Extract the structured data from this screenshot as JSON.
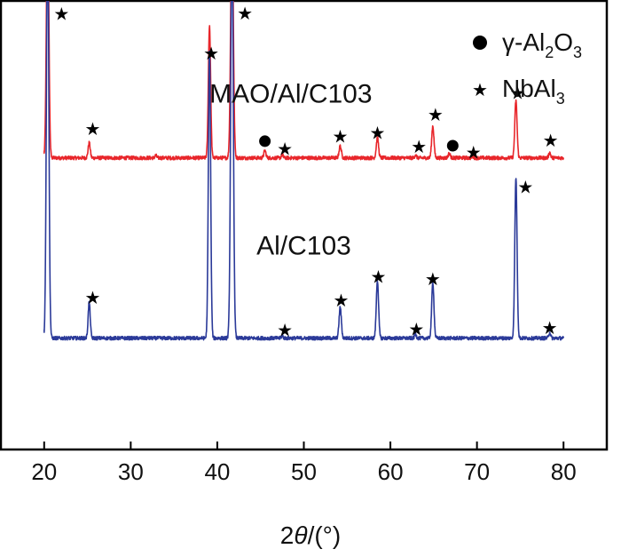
{
  "chart_data": {
    "type": "line",
    "title": "",
    "xlabel_parts": [
      "2",
      "θ",
      "/(°)"
    ],
    "ylabel": "",
    "xlim": [
      15,
      85
    ],
    "ylim": [
      -10,
      100
    ],
    "xticks": [
      20,
      30,
      40,
      50,
      60,
      70,
      80
    ],
    "y_ticks_shown": false,
    "colors": {
      "red": "#e8262b",
      "blue": "#2b3a99",
      "axis": "#000000"
    },
    "series": [
      {
        "name": "MAO/Al/C103",
        "color": "#e8262b",
        "baseline": 61.5,
        "x_range": [
          20,
          80
        ],
        "peaks": [
          {
            "x": 20.4,
            "height": 60,
            "width": 0.14
          },
          {
            "x": 25.2,
            "height": 3.7,
            "width": 0.12
          },
          {
            "x": 32.9,
            "height": 0.6,
            "width": 0.1
          },
          {
            "x": 39.1,
            "height": 32.5,
            "width": 0.13
          },
          {
            "x": 41.7,
            "height": 60,
            "width": 0.15
          },
          {
            "x": 45.5,
            "height": 1.8,
            "width": 0.12
          },
          {
            "x": 47.5,
            "height": 0.8,
            "width": 0.1
          },
          {
            "x": 54.2,
            "height": 2.9,
            "width": 0.13
          },
          {
            "x": 58.5,
            "height": 4.9,
            "width": 0.13
          },
          {
            "x": 62.9,
            "height": 0.7,
            "width": 0.1
          },
          {
            "x": 64.9,
            "height": 7.8,
            "width": 0.13
          },
          {
            "x": 66.8,
            "height": 1.1,
            "width": 0.12
          },
          {
            "x": 69.5,
            "height": 0.4,
            "width": 0.1
          },
          {
            "x": 74.5,
            "height": 14.1,
            "width": 0.13
          },
          {
            "x": 78.4,
            "height": 1.3,
            "width": 0.11
          }
        ]
      },
      {
        "name": "Al/C103",
        "color": "#2b3a99",
        "baseline": 17.3,
        "x_range": [
          20,
          80
        ],
        "peaks": [
          {
            "x": 20.4,
            "height": 100,
            "width": 0.14
          },
          {
            "x": 25.2,
            "height": 8.8,
            "width": 0.12
          },
          {
            "x": 39.1,
            "height": 71,
            "width": 0.13
          },
          {
            "x": 41.7,
            "height": 100,
            "width": 0.15
          },
          {
            "x": 47.5,
            "height": 0.6,
            "width": 0.1
          },
          {
            "x": 54.2,
            "height": 7.6,
            "width": 0.13
          },
          {
            "x": 58.5,
            "height": 14.2,
            "width": 0.13
          },
          {
            "x": 62.9,
            "height": 1.0,
            "width": 0.1
          },
          {
            "x": 64.9,
            "height": 13.7,
            "width": 0.13
          },
          {
            "x": 74.5,
            "height": 39.5,
            "width": 0.13
          },
          {
            "x": 78.4,
            "height": 1.4,
            "width": 0.11
          }
        ]
      }
    ],
    "markers": [
      {
        "symbol": "star",
        "x": 22.0,
        "y": 96.8
      },
      {
        "symbol": "star",
        "x": 43.2,
        "y": 97.0
      },
      {
        "symbol": "star",
        "x": 39.3,
        "y": 87.2
      },
      {
        "symbol": "star",
        "x": 25.6,
        "y": 68.6
      },
      {
        "symbol": "circle",
        "x": 45.5,
        "y": 65.6
      },
      {
        "symbol": "star",
        "x": 47.8,
        "y": 63.7
      },
      {
        "symbol": "star",
        "x": 54.2,
        "y": 66.8
      },
      {
        "symbol": "star",
        "x": 58.5,
        "y": 67.6
      },
      {
        "symbol": "star",
        "x": 63.3,
        "y": 64.3
      },
      {
        "symbol": "star",
        "x": 65.2,
        "y": 72.1
      },
      {
        "symbol": "circle",
        "x": 67.2,
        "y": 64.5
      },
      {
        "symbol": "star",
        "x": 69.6,
        "y": 62.9
      },
      {
        "symbol": "star",
        "x": 74.7,
        "y": 77.5
      },
      {
        "symbol": "star",
        "x": 78.5,
        "y": 65.8
      },
      {
        "symbol": "star",
        "x": 25.6,
        "y": 27.3
      },
      {
        "symbol": "star",
        "x": 47.8,
        "y": 19.3
      },
      {
        "symbol": "star",
        "x": 54.3,
        "y": 26.6
      },
      {
        "symbol": "star",
        "x": 58.6,
        "y": 32.4
      },
      {
        "symbol": "star",
        "x": 63.0,
        "y": 19.5
      },
      {
        "symbol": "star",
        "x": 64.9,
        "y": 31.8
      },
      {
        "symbol": "star",
        "x": 75.6,
        "y": 54.4
      },
      {
        "symbol": "star",
        "x": 78.4,
        "y": 19.8
      }
    ],
    "series_labels": [
      {
        "text": "MAO/Al/C103",
        "x": 48.5,
        "y": 75.1
      },
      {
        "text": "Al/C103",
        "x": 50.0,
        "y": 37.8
      }
    ],
    "legend": {
      "position": "top-right",
      "entries": [
        {
          "symbol": "circle",
          "text_parts": [
            "γ-Al",
            "2",
            "O",
            "3"
          ]
        },
        {
          "symbol": "star",
          "text_parts": [
            "NbAl",
            "3"
          ]
        }
      ]
    }
  }
}
